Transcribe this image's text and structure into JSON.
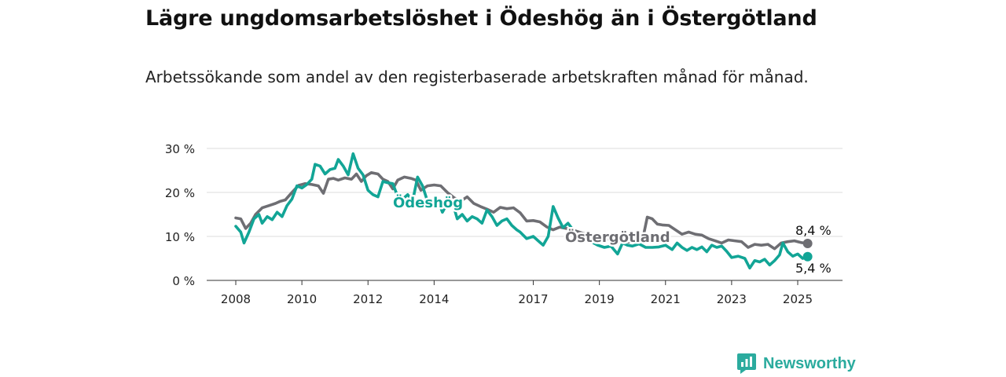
{
  "title": "Lägre ungdomsarbetslöshet i Ödeshög än i Östergötland",
  "subtitle": "Arbetssökande som andel av den registerbaserade arbetskraften månad för månad.",
  "brand": {
    "name": "Newsworthy"
  },
  "colors": {
    "odeshog": "#12a596",
    "ostergotland": "#6e6e73",
    "grid": "#dddddd",
    "brand": "#2bab9e"
  },
  "chart_data": {
    "type": "line",
    "xlim": [
      2008,
      2025.5
    ],
    "ylim": [
      0,
      30
    ],
    "yticks": [
      0,
      10,
      20,
      30
    ],
    "ytick_labels": [
      "0 %",
      "10 %",
      "20 %",
      "30 %"
    ],
    "xticks": [
      2008,
      2010,
      2012,
      2014,
      2017,
      2019,
      2021,
      2023,
      2025
    ],
    "xtick_labels": [
      "2008",
      "2010",
      "2012",
      "2014",
      "2017",
      "2019",
      "2021",
      "2023",
      "2025"
    ],
    "grid": true,
    "series": [
      {
        "name": "Östergötland",
        "color": "#6e6e73",
        "end_label": "8,4 %",
        "points": [
          [
            2008,
            14.2
          ],
          [
            2008.15,
            14
          ],
          [
            2008.3,
            11.8
          ],
          [
            2008.45,
            13
          ],
          [
            2008.6,
            15
          ],
          [
            2008.8,
            16.5
          ],
          [
            2009,
            17
          ],
          [
            2009.2,
            17.5
          ],
          [
            2009.35,
            18
          ],
          [
            2009.5,
            18.3
          ],
          [
            2009.7,
            20
          ],
          [
            2009.9,
            21.6
          ],
          [
            2010.1,
            22
          ],
          [
            2010.3,
            21.8
          ],
          [
            2010.5,
            21.5
          ],
          [
            2010.65,
            19.8
          ],
          [
            2010.8,
            23
          ],
          [
            2010.95,
            23.2
          ],
          [
            2011.1,
            22.8
          ],
          [
            2011.3,
            23.3
          ],
          [
            2011.5,
            23
          ],
          [
            2011.65,
            24.2
          ],
          [
            2011.8,
            22.5
          ],
          [
            2011.95,
            23.8
          ],
          [
            2012.1,
            24.5
          ],
          [
            2012.3,
            24.2
          ],
          [
            2012.45,
            23
          ],
          [
            2012.6,
            22.5
          ],
          [
            2012.75,
            20.8
          ],
          [
            2012.9,
            22.8
          ],
          [
            2013.1,
            23.5
          ],
          [
            2013.3,
            23.2
          ],
          [
            2013.45,
            22.8
          ],
          [
            2013.6,
            20.5
          ],
          [
            2013.8,
            21.5
          ],
          [
            2014,
            21.7
          ],
          [
            2014.2,
            21.5
          ],
          [
            2014.4,
            20
          ],
          [
            2014.6,
            18.8
          ],
          [
            2014.8,
            18
          ],
          [
            2015,
            19
          ],
          [
            2015.2,
            17.5
          ],
          [
            2015.4,
            16.8
          ],
          [
            2015.6,
            16.2
          ],
          [
            2015.8,
            15.5
          ],
          [
            2016,
            16.6
          ],
          [
            2016.2,
            16.3
          ],
          [
            2016.4,
            16.5
          ],
          [
            2016.6,
            15.4
          ],
          [
            2016.8,
            13.5
          ],
          [
            2017,
            13.6
          ],
          [
            2017.2,
            13.3
          ],
          [
            2017.4,
            12.2
          ],
          [
            2017.6,
            11.5
          ],
          [
            2017.8,
            12.1
          ],
          [
            2018,
            11.8
          ],
          [
            2018.3,
            11.2
          ],
          [
            2018.6,
            10.5
          ],
          [
            2018.9,
            9.8
          ],
          [
            2019.2,
            9.5
          ],
          [
            2019.5,
            9
          ],
          [
            2019.8,
            8.7
          ],
          [
            2020.1,
            8.8
          ],
          [
            2020.3,
            9
          ],
          [
            2020.45,
            14.4
          ],
          [
            2020.6,
            14
          ],
          [
            2020.75,
            12.8
          ],
          [
            2020.9,
            12.6
          ],
          [
            2021.1,
            12.5
          ],
          [
            2021.3,
            11.5
          ],
          [
            2021.5,
            10.5
          ],
          [
            2021.7,
            11
          ],
          [
            2021.9,
            10.5
          ],
          [
            2022.1,
            10.3
          ],
          [
            2022.3,
            9.5
          ],
          [
            2022.5,
            9
          ],
          [
            2022.7,
            8.5
          ],
          [
            2022.9,
            9.2
          ],
          [
            2023.1,
            9
          ],
          [
            2023.3,
            8.8
          ],
          [
            2023.5,
            7.5
          ],
          [
            2023.7,
            8.2
          ],
          [
            2023.9,
            8
          ],
          [
            2024.1,
            8.2
          ],
          [
            2024.3,
            7.2
          ],
          [
            2024.5,
            8.5
          ],
          [
            2024.7,
            8.8
          ],
          [
            2024.9,
            9
          ],
          [
            2025.1,
            8.6
          ],
          [
            2025.3,
            8.4
          ]
        ]
      },
      {
        "name": "Ödeshög",
        "color": "#12a596",
        "end_label": "5,4 %",
        "points": [
          [
            2008,
            12.3
          ],
          [
            2008.15,
            11
          ],
          [
            2008.25,
            8.5
          ],
          [
            2008.4,
            11
          ],
          [
            2008.55,
            14
          ],
          [
            2008.7,
            15
          ],
          [
            2008.8,
            13
          ],
          [
            2008.95,
            14.5
          ],
          [
            2009.1,
            13.8
          ],
          [
            2009.25,
            15.5
          ],
          [
            2009.4,
            14.5
          ],
          [
            2009.55,
            17
          ],
          [
            2009.7,
            18.5
          ],
          [
            2009.85,
            21.5
          ],
          [
            2010,
            21
          ],
          [
            2010.15,
            21.8
          ],
          [
            2010.3,
            23
          ],
          [
            2010.4,
            26.4
          ],
          [
            2010.55,
            26
          ],
          [
            2010.7,
            24.2
          ],
          [
            2010.85,
            25.2
          ],
          [
            2011,
            25.5
          ],
          [
            2011.1,
            27.5
          ],
          [
            2011.25,
            26
          ],
          [
            2011.4,
            24
          ],
          [
            2011.55,
            28.8
          ],
          [
            2011.7,
            25.5
          ],
          [
            2011.85,
            24
          ],
          [
            2012,
            20.5
          ],
          [
            2012.15,
            19.5
          ],
          [
            2012.3,
            19
          ],
          [
            2012.45,
            22.5
          ],
          [
            2012.6,
            22.2
          ],
          [
            2012.75,
            22
          ],
          [
            2012.9,
            19
          ],
          [
            2013.05,
            18.5
          ],
          [
            2013.2,
            19.5
          ],
          [
            2013.35,
            18
          ],
          [
            2013.5,
            23.5
          ],
          [
            2013.65,
            21.5
          ],
          [
            2013.8,
            18
          ],
          [
            2013.95,
            16.8
          ],
          [
            2014.1,
            18.5
          ],
          [
            2014.25,
            15.5
          ],
          [
            2014.4,
            17.5
          ],
          [
            2014.55,
            17.8
          ],
          [
            2014.7,
            14
          ],
          [
            2014.85,
            15
          ],
          [
            2015,
            13.5
          ],
          [
            2015.15,
            14.5
          ],
          [
            2015.3,
            14
          ],
          [
            2015.45,
            13
          ],
          [
            2015.6,
            16
          ],
          [
            2015.75,
            14.5
          ],
          [
            2015.9,
            12.5
          ],
          [
            2016.05,
            13.5
          ],
          [
            2016.2,
            14
          ],
          [
            2016.35,
            12.5
          ],
          [
            2016.5,
            11.5
          ],
          [
            2016.6,
            11
          ],
          [
            2016.8,
            9.5
          ],
          [
            2017,
            10
          ],
          [
            2017.15,
            9
          ],
          [
            2017.3,
            8
          ],
          [
            2017.45,
            10
          ],
          [
            2017.6,
            16.8
          ],
          [
            2017.75,
            14.2
          ],
          [
            2017.9,
            12
          ],
          [
            2018.05,
            13
          ],
          [
            2018.2,
            11.5
          ],
          [
            2018.35,
            10
          ],
          [
            2018.55,
            9.5
          ],
          [
            2018.75,
            8.8
          ],
          [
            2018.95,
            8
          ],
          [
            2019.15,
            7.5
          ],
          [
            2019.35,
            7.8
          ],
          [
            2019.55,
            6
          ],
          [
            2019.7,
            8.5
          ],
          [
            2019.85,
            8
          ],
          [
            2020,
            7.8
          ],
          [
            2020.2,
            8.3
          ],
          [
            2020.4,
            7.5
          ],
          [
            2020.6,
            7.5
          ],
          [
            2020.8,
            7.6
          ],
          [
            2021,
            8
          ],
          [
            2021.2,
            7
          ],
          [
            2021.35,
            8.5
          ],
          [
            2021.5,
            7.5
          ],
          [
            2021.65,
            6.8
          ],
          [
            2021.8,
            7.5
          ],
          [
            2021.95,
            7
          ],
          [
            2022.1,
            7.6
          ],
          [
            2022.25,
            6.5
          ],
          [
            2022.4,
            8
          ],
          [
            2022.55,
            7.5
          ],
          [
            2022.7,
            7.8
          ],
          [
            2022.85,
            6.6
          ],
          [
            2023,
            5.2
          ],
          [
            2023.2,
            5.5
          ],
          [
            2023.4,
            5
          ],
          [
            2023.55,
            2.8
          ],
          [
            2023.7,
            4.5
          ],
          [
            2023.85,
            4.2
          ],
          [
            2024,
            4.8
          ],
          [
            2024.15,
            3.5
          ],
          [
            2024.3,
            4.5
          ],
          [
            2024.45,
            5.8
          ],
          [
            2024.55,
            8.5
          ],
          [
            2024.7,
            6.5
          ],
          [
            2024.85,
            5.5
          ],
          [
            2025,
            6
          ],
          [
            2025.15,
            5
          ],
          [
            2025.3,
            5.4
          ]
        ]
      }
    ]
  }
}
